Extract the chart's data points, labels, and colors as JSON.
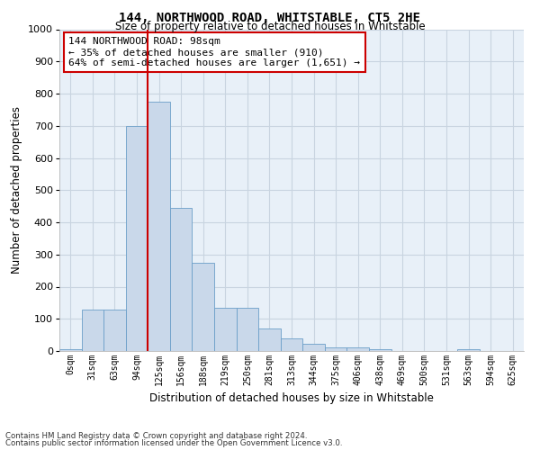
{
  "title": "144, NORTHWOOD ROAD, WHITSTABLE, CT5 2HE",
  "subtitle": "Size of property relative to detached houses in Whitstable",
  "xlabel": "Distribution of detached houses by size in Whitstable",
  "ylabel": "Number of detached properties",
  "bar_values": [
    5,
    128,
    130,
    700,
    775,
    445,
    275,
    135,
    135,
    70,
    40,
    22,
    10,
    10,
    5,
    0,
    0,
    0,
    5,
    0,
    0
  ],
  "bar_color": "#c9d8ea",
  "bar_edge_color": "#6b9ec8",
  "bin_labels": [
    "0sqm",
    "31sqm",
    "63sqm",
    "94sqm",
    "125sqm",
    "156sqm",
    "188sqm",
    "219sqm",
    "250sqm",
    "281sqm",
    "313sqm",
    "344sqm",
    "375sqm",
    "406sqm",
    "438sqm",
    "469sqm",
    "500sqm",
    "531sqm",
    "563sqm",
    "594sqm",
    "625sqm"
  ],
  "vline_x_index": 3,
  "vline_color": "#cc0000",
  "annotation_text": "144 NORTHWOOD ROAD: 98sqm\n← 35% of detached houses are smaller (910)\n64% of semi-detached houses are larger (1,651) →",
  "annotation_box_color": "#ffffff",
  "annotation_box_edge": "#cc0000",
  "ylim": [
    0,
    1000
  ],
  "yticks": [
    0,
    100,
    200,
    300,
    400,
    500,
    600,
    700,
    800,
    900,
    1000
  ],
  "grid_color": "#c8d4e0",
  "bg_color": "#e8f0f8",
  "footer1": "Contains HM Land Registry data © Crown copyright and database right 2024.",
  "footer2": "Contains public sector information licensed under the Open Government Licence v3.0."
}
